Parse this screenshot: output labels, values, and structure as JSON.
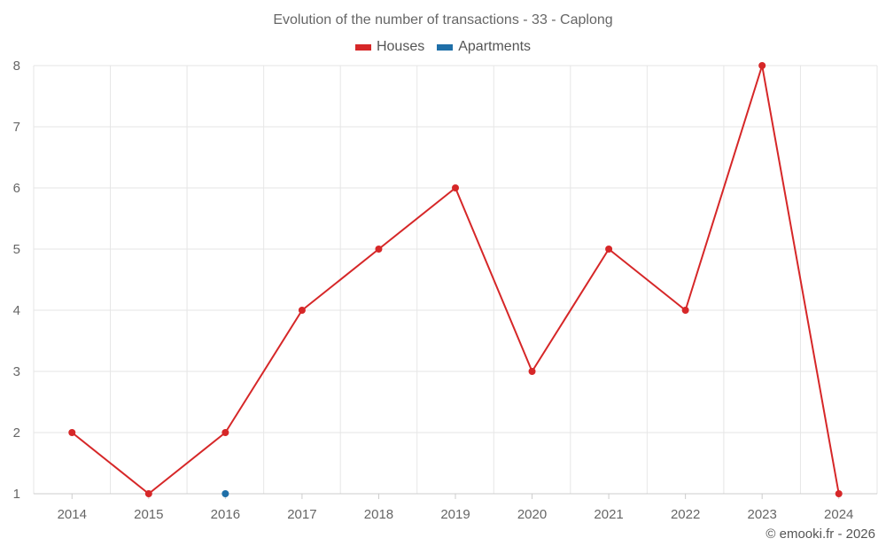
{
  "chart_data": {
    "type": "line",
    "title": "Evolution of the number of transactions - 33 - Caplong",
    "categories": [
      "2014",
      "2015",
      "2016",
      "2017",
      "2018",
      "2019",
      "2020",
      "2021",
      "2022",
      "2023",
      "2024"
    ],
    "series": [
      {
        "name": "Houses",
        "color": "#d62728",
        "values": [
          2,
          1,
          2,
          4,
          5,
          6,
          3,
          5,
          4,
          8,
          1
        ]
      },
      {
        "name": "Apartments",
        "color": "#1f6fa8",
        "values": [
          null,
          null,
          1,
          null,
          null,
          null,
          null,
          null,
          null,
          null,
          null
        ]
      }
    ],
    "y_ticks": [
      1,
      2,
      3,
      4,
      5,
      6,
      7,
      8
    ],
    "ylim": [
      1,
      8
    ],
    "xlabel": "",
    "ylabel": "",
    "grid": true,
    "legend_position": "top-center"
  },
  "credit": "© emooki.fr - 2026"
}
